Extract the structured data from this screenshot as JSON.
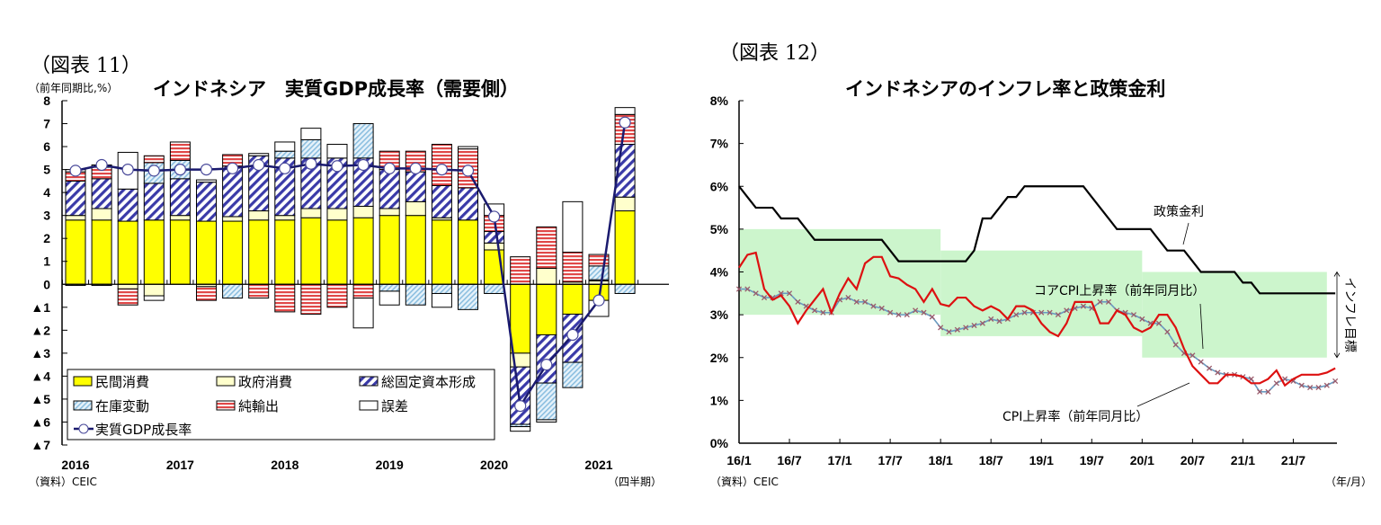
{
  "chart_data": [
    {
      "type": "bar",
      "figure_label": "（図表 11）",
      "title": "インドネシア　実質GDP成長率（需要側）",
      "ylabel": "（前年同期比,%）",
      "xlabel": "（四半期）",
      "source": "（資料）CEIC",
      "ylim": [
        -7,
        8
      ],
      "yticks": [
        "8",
        "7",
        "6",
        "5",
        "4",
        "3",
        "2",
        "1",
        "0",
        "▲1",
        "▲2",
        "▲3",
        "▲4",
        "▲5",
        "▲6",
        "▲7"
      ],
      "year_labels": [
        "2016",
        "2017",
        "2018",
        "2019",
        "2020",
        "2021"
      ],
      "categories": [
        "2016Q1",
        "2016Q2",
        "2016Q3",
        "2016Q4",
        "2017Q1",
        "2017Q2",
        "2017Q3",
        "2017Q4",
        "2018Q1",
        "2018Q2",
        "2018Q3",
        "2018Q4",
        "2019Q1",
        "2019Q2",
        "2019Q3",
        "2019Q4",
        "2020Q1",
        "2020Q2",
        "2020Q3",
        "2020Q4",
        "2021Q1",
        "2021Q2"
      ],
      "series": [
        {
          "name": "民間消費",
          "key": "private",
          "color": "#ffff00",
          "values": [
            2.8,
            2.8,
            2.75,
            2.8,
            2.8,
            2.75,
            2.75,
            2.8,
            2.8,
            2.9,
            2.8,
            2.9,
            3.0,
            3.0,
            2.8,
            2.8,
            1.5,
            -3.0,
            -2.2,
            -1.3,
            -0.7,
            3.2
          ]
        },
        {
          "name": "政府消費",
          "key": "gov",
          "color": "#ffffcc",
          "values": [
            0.2,
            0.5,
            -0.2,
            -0.5,
            0.2,
            -0.1,
            0.2,
            0.4,
            0.2,
            0.4,
            0.5,
            0.5,
            0.3,
            0.6,
            0.1,
            0.0,
            0.3,
            -0.6,
            0.7,
            0.1,
            0.15,
            0.6
          ]
        },
        {
          "name": "総固定資本形成",
          "key": "gfcf",
          "color": "#3333aa",
          "values": [
            1.5,
            1.3,
            1.4,
            1.6,
            1.6,
            1.7,
            2.2,
            2.4,
            2.5,
            2.2,
            2.2,
            2.1,
            1.7,
            1.3,
            1.4,
            1.4,
            0.5,
            -2.5,
            -2.1,
            -2.1,
            0.05,
            2.3
          ]
        },
        {
          "name": "在庫変動",
          "key": "inv",
          "color": "#a8d0ea",
          "values": [
            -0.05,
            -0.05,
            0.0,
            0.9,
            0.8,
            0.0,
            -0.6,
            0.0,
            0.3,
            0.8,
            0.0,
            1.5,
            -0.3,
            -0.9,
            -0.4,
            -1.1,
            -0.4,
            -0.1,
            -1.6,
            -1.1,
            0.6,
            -0.4
          ]
        },
        {
          "name": "純輸出",
          "key": "netx",
          "color": "#e04040",
          "values": [
            0.4,
            0.5,
            -0.7,
            0.3,
            0.8,
            -0.6,
            0.5,
            -0.6,
            -1.2,
            -1.3,
            -1.0,
            -0.6,
            0.8,
            0.9,
            1.8,
            1.7,
            0.7,
            1.2,
            1.8,
            1.3,
            0.5,
            1.3
          ]
        },
        {
          "name": "誤差",
          "key": "err",
          "color": "#ffffff",
          "values": [
            0.1,
            0.1,
            1.6,
            -0.2,
            0.0,
            0.1,
            0.0,
            0.1,
            0.4,
            0.5,
            0.6,
            -1.3,
            -0.6,
            0.0,
            -0.6,
            0.1,
            0.5,
            -0.2,
            -0.1,
            2.2,
            -0.7,
            0.3
          ]
        },
        {
          "name": "実質GDP成長率",
          "key": "gdp",
          "color": "#1a1a6e",
          "values": [
            4.95,
            5.2,
            5.0,
            4.95,
            5.0,
            5.0,
            5.05,
            5.2,
            5.05,
            5.25,
            5.15,
            5.2,
            5.05,
            5.05,
            5.0,
            4.95,
            2.95,
            -5.3,
            -3.5,
            -2.2,
            -0.7,
            7.05
          ]
        }
      ],
      "legend": [
        {
          "label": "民間消費",
          "key": "private"
        },
        {
          "label": "政府消費",
          "key": "gov"
        },
        {
          "label": "総固定資本形成",
          "key": "gfcf"
        },
        {
          "label": "在庫変動",
          "key": "inv"
        },
        {
          "label": "純輸出",
          "key": "netx"
        },
        {
          "label": "誤差",
          "key": "err"
        },
        {
          "label": "実質GDP成長率",
          "key": "gdp"
        }
      ],
      "legend_placement": "bottom-left"
    },
    {
      "type": "line",
      "figure_label": "（図表 12）",
      "title": "インドネシアのインフレ率と政策金利",
      "xlabel": "（年/月）",
      "source": "（資料）CEIC",
      "ylim": [
        0,
        8
      ],
      "yticks": [
        "0%",
        "1%",
        "2%",
        "3%",
        "4%",
        "5%",
        "6%",
        "7%",
        "8%"
      ],
      "xticks": [
        "16/1",
        "16/7",
        "17/1",
        "17/7",
        "18/1",
        "18/7",
        "19/1",
        "19/7",
        "20/1",
        "20/7",
        "21/1",
        "21/7"
      ],
      "x_start": "2016-01",
      "x_end": "2021-10",
      "series": [
        {
          "name": "政策金利",
          "key": "policy",
          "color": "#000000",
          "values": [
            6.0,
            5.75,
            5.5,
            5.5,
            5.5,
            5.25,
            5.25,
            5.25,
            5.0,
            4.75,
            4.75,
            4.75,
            4.75,
            4.75,
            4.75,
            4.75,
            4.75,
            4.75,
            4.5,
            4.25,
            4.25,
            4.25,
            4.25,
            4.25,
            4.25,
            4.25,
            4.25,
            4.25,
            4.5,
            5.25,
            5.25,
            5.5,
            5.75,
            5.75,
            6.0,
            6.0,
            6.0,
            6.0,
            6.0,
            6.0,
            6.0,
            6.0,
            5.75,
            5.5,
            5.25,
            5.0,
            5.0,
            5.0,
            5.0,
            5.0,
            4.75,
            4.5,
            4.5,
            4.5,
            4.25,
            4.0,
            4.0,
            4.0,
            4.0,
            4.0,
            3.75,
            3.75,
            3.5,
            3.5,
            3.5,
            3.5,
            3.5,
            3.5,
            3.5,
            3.5,
            3.5,
            3.5
          ]
        },
        {
          "name": "CPI上昇率（前年同月比）",
          "key": "cpi",
          "color": "#dd1111",
          "values": [
            4.1,
            4.4,
            4.45,
            3.6,
            3.35,
            3.45,
            3.2,
            2.8,
            3.1,
            3.35,
            3.6,
            3.05,
            3.5,
            3.85,
            3.6,
            4.2,
            4.35,
            4.35,
            3.9,
            3.85,
            3.7,
            3.6,
            3.3,
            3.6,
            3.25,
            3.2,
            3.4,
            3.4,
            3.2,
            3.1,
            3.2,
            3.1,
            2.9,
            3.2,
            3.2,
            3.1,
            2.8,
            2.6,
            2.5,
            2.8,
            3.3,
            3.3,
            3.3,
            2.8,
            2.8,
            3.1,
            3.0,
            2.7,
            2.6,
            2.7,
            3.0,
            3.0,
            2.7,
            2.2,
            1.8,
            1.6,
            1.4,
            1.4,
            1.6,
            1.6,
            1.55,
            1.4,
            1.4,
            1.5,
            1.7,
            1.35,
            1.5,
            1.6,
            1.6,
            1.6,
            1.65,
            1.75
          ]
        },
        {
          "name": "コアCPI上昇率（前年同月比）",
          "key": "core",
          "color": "#5a8ab0",
          "values": [
            3.6,
            3.6,
            3.5,
            3.4,
            3.4,
            3.5,
            3.5,
            3.3,
            3.2,
            3.1,
            3.05,
            3.05,
            3.35,
            3.4,
            3.3,
            3.3,
            3.2,
            3.15,
            3.05,
            3.0,
            3.0,
            3.1,
            3.05,
            2.95,
            2.7,
            2.6,
            2.65,
            2.7,
            2.75,
            2.8,
            2.9,
            2.85,
            2.9,
            3.0,
            3.05,
            3.05,
            3.05,
            3.05,
            3.0,
            3.1,
            3.15,
            3.2,
            3.15,
            3.3,
            3.3,
            3.1,
            3.05,
            3.0,
            2.9,
            2.8,
            2.8,
            2.6,
            2.3,
            2.1,
            2.05,
            1.9,
            1.75,
            1.65,
            1.6,
            1.6,
            1.55,
            1.5,
            1.2,
            1.2,
            1.4,
            1.5,
            1.45,
            1.35,
            1.3,
            1.3,
            1.35,
            1.45
          ]
        }
      ],
      "target_bands": [
        {
          "from": "2016-01",
          "to": "2017-12",
          "low": 3.0,
          "high": 5.0
        },
        {
          "from": "2018-01",
          "to": "2019-12",
          "low": 2.5,
          "high": 4.5
        },
        {
          "from": "2020-01",
          "to": "2021-10",
          "low": 2.0,
          "high": 4.0
        }
      ],
      "band_color": "#ccf5cc",
      "annotations": [
        {
          "text": "政策金利",
          "key": "policy"
        },
        {
          "text": "コアCPI上昇率（前年同月比）",
          "key": "core"
        },
        {
          "text": "CPI上昇率（前年同月比）",
          "key": "cpi"
        },
        {
          "text": "インフレ目標",
          "key": "band"
        }
      ]
    }
  ]
}
